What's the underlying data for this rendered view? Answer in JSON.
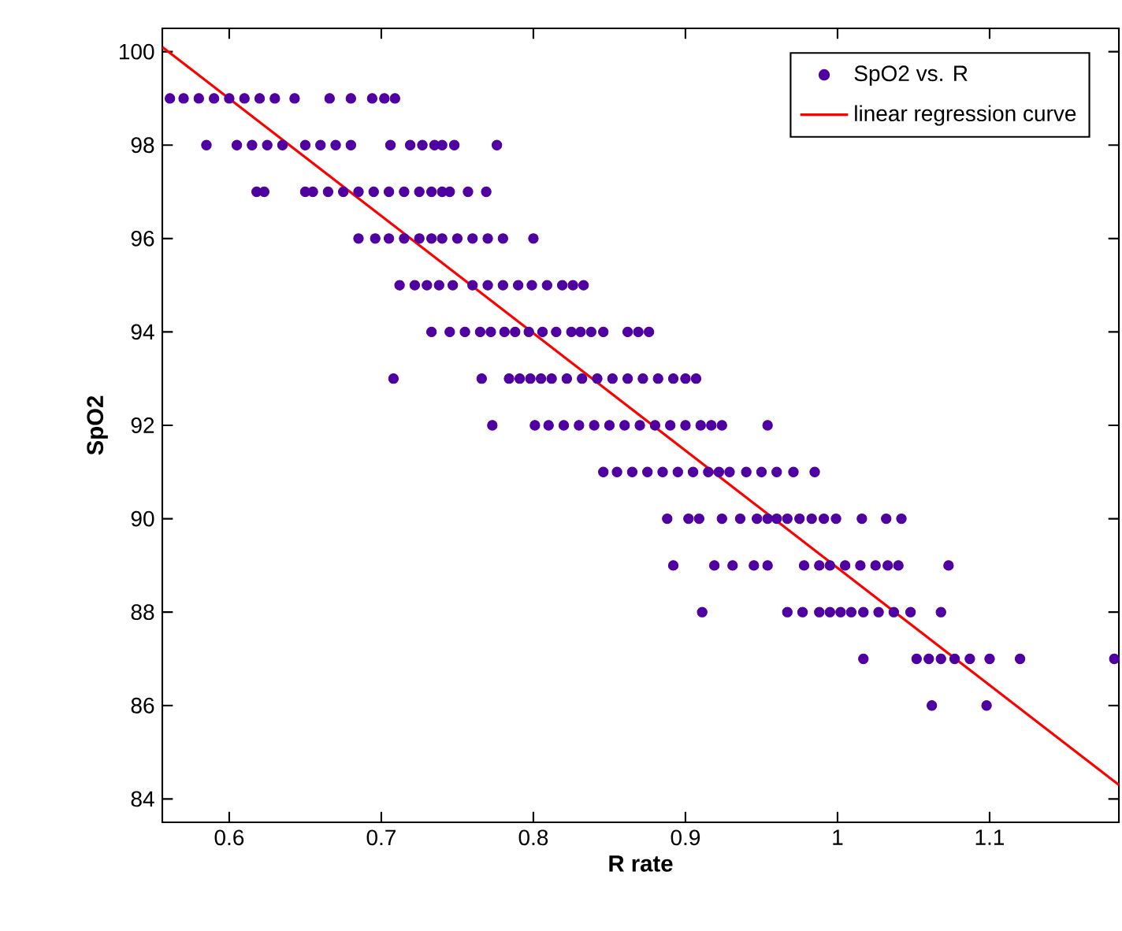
{
  "chart_data": {
    "type": "scatter",
    "xlabel": "R rate",
    "ylabel": "SpO2",
    "xlim": [
      0.556,
      1.185
    ],
    "ylim": [
      83.5,
      100.5
    ],
    "xticks": [
      0.6,
      0.7,
      0.8,
      0.9,
      1,
      1.1
    ],
    "yticks": [
      84,
      86,
      88,
      90,
      92,
      94,
      96,
      98,
      100
    ],
    "grid": false,
    "legend": "top right",
    "series": [
      {
        "name": "SpO2 vs. R",
        "marker": "circle",
        "color": "#5000a0",
        "x": [
          0.561,
          0.57,
          0.58,
          0.59,
          0.6,
          0.61,
          0.62,
          0.63,
          0.643,
          0.666,
          0.68,
          0.694,
          0.702,
          0.709,
          0.585,
          0.605,
          0.615,
          0.625,
          0.635,
          0.65,
          0.66,
          0.67,
          0.68,
          0.706,
          0.719,
          0.727,
          0.735,
          0.74,
          0.748,
          0.776,
          0.618,
          0.623,
          0.65,
          0.655,
          0.665,
          0.675,
          0.685,
          0.695,
          0.705,
          0.715,
          0.725,
          0.733,
          0.74,
          0.745,
          0.757,
          0.769,
          0.685,
          0.696,
          0.705,
          0.715,
          0.725,
          0.733,
          0.74,
          0.75,
          0.76,
          0.77,
          0.78,
          0.8,
          0.712,
          0.722,
          0.73,
          0.738,
          0.747,
          0.76,
          0.77,
          0.78,
          0.79,
          0.799,
          0.809,
          0.819,
          0.826,
          0.833,
          0.733,
          0.745,
          0.755,
          0.765,
          0.772,
          0.781,
          0.788,
          0.797,
          0.806,
          0.815,
          0.825,
          0.831,
          0.838,
          0.846,
          0.862,
          0.869,
          0.876,
          0.708,
          0.766,
          0.784,
          0.791,
          0.798,
          0.805,
          0.812,
          0.822,
          0.832,
          0.842,
          0.852,
          0.862,
          0.872,
          0.882,
          0.892,
          0.9,
          0.907,
          0.773,
          0.801,
          0.81,
          0.82,
          0.83,
          0.84,
          0.85,
          0.86,
          0.87,
          0.88,
          0.89,
          0.9,
          0.91,
          0.917,
          0.924,
          0.954,
          0.846,
          0.855,
          0.865,
          0.875,
          0.885,
          0.895,
          0.905,
          0.915,
          0.922,
          0.929,
          0.94,
          0.95,
          0.96,
          0.971,
          0.985,
          0.888,
          0.902,
          0.909,
          0.924,
          0.936,
          0.947,
          0.954,
          0.96,
          0.967,
          0.975,
          0.983,
          0.991,
          0.999,
          1.016,
          1.032,
          1.042,
          0.892,
          0.919,
          0.931,
          0.945,
          0.954,
          0.978,
          0.988,
          0.995,
          1.005,
          1.015,
          1.025,
          1.033,
          1.04,
          1.073,
          0.911,
          0.967,
          0.977,
          0.988,
          0.995,
          1.002,
          1.009,
          1.017,
          1.027,
          1.037,
          1.048,
          1.068,
          1.017,
          1.052,
          1.06,
          1.068,
          1.077,
          1.087,
          1.1,
          1.12,
          1.182,
          1.062,
          1.098
        ],
        "values": [
          99,
          99,
          99,
          99,
          99,
          99,
          99,
          99,
          99,
          99,
          99,
          99,
          99,
          99,
          98,
          98,
          98,
          98,
          98,
          98,
          98,
          98,
          98,
          98,
          98,
          98,
          98,
          98,
          98,
          98,
          97,
          97,
          97,
          97,
          97,
          97,
          97,
          97,
          97,
          97,
          97,
          97,
          97,
          97,
          97,
          97,
          96,
          96,
          96,
          96,
          96,
          96,
          96,
          96,
          96,
          96,
          96,
          96,
          95,
          95,
          95,
          95,
          95,
          95,
          95,
          95,
          95,
          95,
          95,
          95,
          95,
          95,
          94,
          94,
          94,
          94,
          94,
          94,
          94,
          94,
          94,
          94,
          94,
          94,
          94,
          94,
          94,
          94,
          94,
          93,
          93,
          93,
          93,
          93,
          93,
          93,
          93,
          93,
          93,
          93,
          93,
          93,
          93,
          93,
          93,
          93,
          92,
          92,
          92,
          92,
          92,
          92,
          92,
          92,
          92,
          92,
          92,
          92,
          92,
          92,
          92,
          92,
          91,
          91,
          91,
          91,
          91,
          91,
          91,
          91,
          91,
          91,
          91,
          91,
          91,
          91,
          91,
          90,
          90,
          90,
          90,
          90,
          90,
          90,
          90,
          90,
          90,
          90,
          90,
          90,
          90,
          90,
          90,
          89,
          89,
          89,
          89,
          89,
          89,
          89,
          89,
          89,
          89,
          89,
          89,
          89,
          89,
          88,
          88,
          88,
          88,
          88,
          88,
          88,
          88,
          88,
          88,
          88,
          88,
          87,
          87,
          87,
          87,
          87,
          87,
          87,
          87,
          87,
          86,
          86
        ]
      },
      {
        "name": "linear regression curve",
        "type": "line",
        "marker": "none",
        "line_style": "solid",
        "color": "#ff0000",
        "x": [
          0.556,
          1.185
        ],
        "values": [
          100.1,
          84.3
        ]
      }
    ]
  }
}
